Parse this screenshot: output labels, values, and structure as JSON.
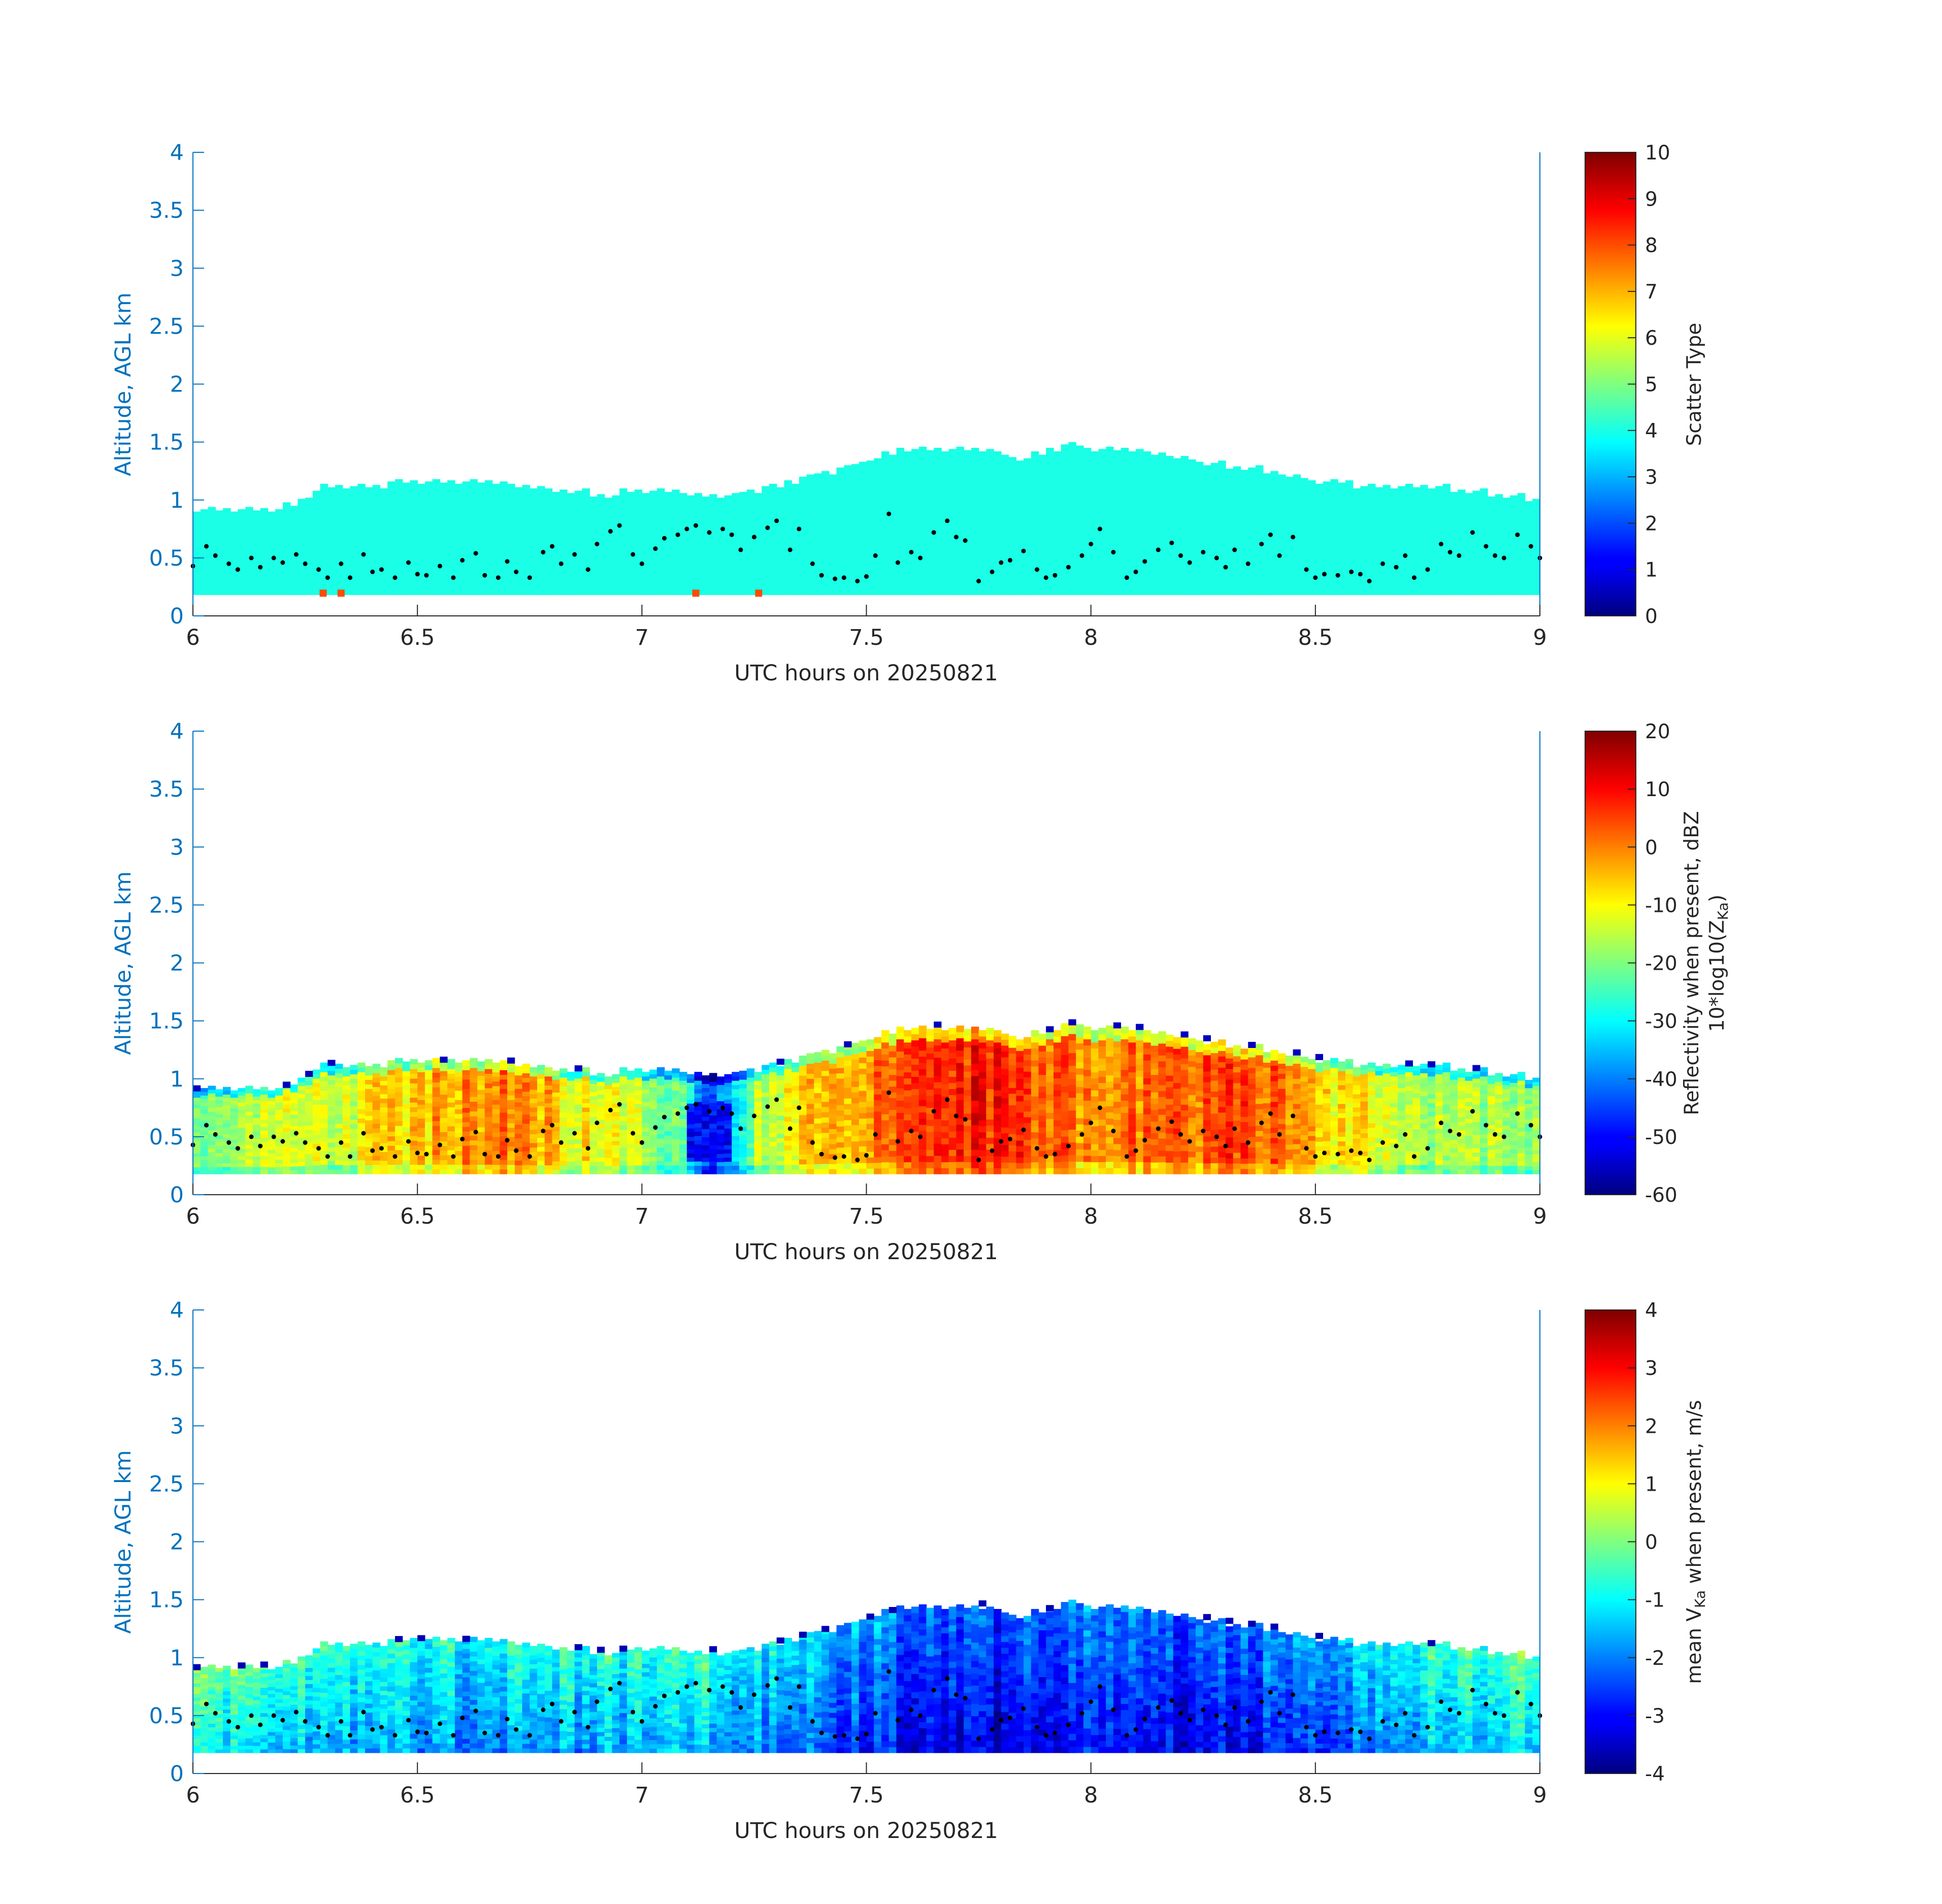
{
  "chart_data": [
    {
      "type": "heatmap",
      "panel": "scatter-type",
      "xlabel": "UTC hours on 20250821",
      "ylabel": "Altitude, AGL km",
      "xlim": [
        6,
        9
      ],
      "ylim": [
        0,
        4
      ],
      "xticks": [
        "6",
        "6.5",
        "7",
        "7.5",
        "8",
        "8.5",
        "9"
      ],
      "yticks": [
        "0",
        "0.5",
        "1",
        "1.5",
        "2",
        "2.5",
        "3",
        "3.5",
        "4"
      ],
      "colorbar": {
        "label": "Scatter Type",
        "label2": "",
        "range": [
          0,
          10
        ],
        "ticks": [
          "0",
          "1",
          "2",
          "3",
          "4",
          "5",
          "6",
          "7",
          "8",
          "9",
          "10"
        ],
        "colormap": "jet"
      },
      "dominant_value": 4,
      "cloud_base_km": 0.18,
      "cloud_top_km": [
        [
          6.0,
          0.9
        ],
        [
          6.2,
          0.93
        ],
        [
          6.3,
          1.12
        ],
        [
          6.5,
          1.15
        ],
        [
          6.7,
          1.14
        ],
        [
          6.9,
          1.05
        ],
        [
          7.0,
          1.07
        ],
        [
          7.2,
          1.05
        ],
        [
          7.3,
          1.13
        ],
        [
          7.45,
          1.28
        ],
        [
          7.6,
          1.45
        ],
        [
          7.75,
          1.45
        ],
        [
          7.85,
          1.35
        ],
        [
          7.95,
          1.47
        ],
        [
          8.1,
          1.43
        ],
        [
          8.3,
          1.3
        ],
        [
          8.4,
          1.25
        ],
        [
          8.5,
          1.17
        ],
        [
          8.6,
          1.13
        ],
        [
          8.8,
          1.1
        ],
        [
          9.0,
          1.0
        ]
      ],
      "special_cells": [
        {
          "x": 6.29,
          "y": 0.2,
          "value": 8
        },
        {
          "x": 6.33,
          "y": 0.2,
          "value": 8
        },
        {
          "x": 7.12,
          "y": 0.2,
          "value": 8
        },
        {
          "x": 7.26,
          "y": 0.2,
          "value": 8
        }
      ]
    },
    {
      "type": "heatmap",
      "panel": "reflectivity",
      "xlabel": "UTC hours on 20250821",
      "ylabel": "Altitude, AGL km",
      "xlim": [
        6,
        9
      ],
      "ylim": [
        0,
        4
      ],
      "xticks": [
        "6",
        "6.5",
        "7",
        "7.5",
        "8",
        "8.5",
        "9"
      ],
      "yticks": [
        "0",
        "0.5",
        "1",
        "1.5",
        "2",
        "2.5",
        "3",
        "3.5",
        "4"
      ],
      "colorbar": {
        "label": "Reflectivity when present, dBZ",
        "label2": "10*log10(Z",
        "label2_sub": "Ka",
        "label2_end": ")",
        "range": [
          -60,
          20
        ],
        "ticks": [
          "-60",
          "-50",
          "-40",
          "-30",
          "-20",
          "-10",
          "0",
          "10",
          "20"
        ],
        "colormap": "jet"
      },
      "intensity_profile": [
        [
          6.0,
          -22
        ],
        [
          6.2,
          -16
        ],
        [
          6.35,
          -12
        ],
        [
          6.5,
          -4
        ],
        [
          6.65,
          -2
        ],
        [
          6.72,
          3
        ],
        [
          6.85,
          -10
        ],
        [
          7.0,
          -14
        ],
        [
          7.1,
          -24
        ],
        [
          7.15,
          -48
        ],
        [
          7.25,
          -18
        ],
        [
          7.4,
          -3
        ],
        [
          7.55,
          2
        ],
        [
          7.75,
          8
        ],
        [
          7.9,
          2
        ],
        [
          8.0,
          0
        ],
        [
          8.15,
          1
        ],
        [
          8.35,
          6
        ],
        [
          8.5,
          -6
        ],
        [
          8.7,
          -14
        ],
        [
          8.9,
          -18
        ],
        [
          9.0,
          -20
        ]
      ],
      "blue_pocket": {
        "x": [
          7.1,
          7.2
        ],
        "y": [
          0.3,
          0.8
        ],
        "value": -50
      }
    },
    {
      "type": "heatmap",
      "panel": "mean-velocity",
      "xlabel": "UTC hours on 20250821",
      "ylabel": "Altitude, AGL km",
      "xlim": [
        6,
        9
      ],
      "ylim": [
        0,
        4
      ],
      "xticks": [
        "6",
        "6.5",
        "7",
        "7.5",
        "8",
        "8.5",
        "9"
      ],
      "yticks": [
        "0",
        "0.5",
        "1",
        "1.5",
        "2",
        "2.5",
        "3",
        "3.5",
        "4"
      ],
      "colorbar": {
        "label_pre": "mean V",
        "label_sub": "Ka",
        "label_post": " when present, m/s",
        "range": [
          -4,
          4
        ],
        "ticks": [
          "-4",
          "-3",
          "-2",
          "-1",
          "0",
          "1",
          "2",
          "3",
          "4"
        ],
        "colormap": "jet"
      },
      "intensity_profile": [
        [
          6.0,
          -0.7
        ],
        [
          6.3,
          -1.0
        ],
        [
          6.6,
          -1.4
        ],
        [
          6.9,
          -1.3
        ],
        [
          7.1,
          -0.9
        ],
        [
          7.3,
          -1.6
        ],
        [
          7.5,
          -2.3
        ],
        [
          7.65,
          -2.6
        ],
        [
          7.8,
          -3.0
        ],
        [
          8.0,
          -2.4
        ],
        [
          8.2,
          -2.8
        ],
        [
          8.35,
          -2.5
        ],
        [
          8.5,
          -1.9
        ],
        [
          8.7,
          -1.3
        ],
        [
          9.0,
          -0.6
        ]
      ]
    }
  ],
  "lcl_points_km": [
    [
      6.0,
      0.43
    ],
    [
      6.03,
      0.6
    ],
    [
      6.05,
      0.52
    ],
    [
      6.08,
      0.45
    ],
    [
      6.1,
      0.4
    ],
    [
      6.13,
      0.5
    ],
    [
      6.15,
      0.42
    ],
    [
      6.18,
      0.5
    ],
    [
      6.2,
      0.46
    ],
    [
      6.23,
      0.53
    ],
    [
      6.25,
      0.45
    ],
    [
      6.28,
      0.4
    ],
    [
      6.3,
      0.33
    ],
    [
      6.33,
      0.45
    ],
    [
      6.35,
      0.33
    ],
    [
      6.38,
      0.53
    ],
    [
      6.4,
      0.38
    ],
    [
      6.42,
      0.4
    ],
    [
      6.45,
      0.33
    ],
    [
      6.48,
      0.46
    ],
    [
      6.5,
      0.36
    ],
    [
      6.52,
      0.35
    ],
    [
      6.55,
      0.43
    ],
    [
      6.58,
      0.33
    ],
    [
      6.6,
      0.48
    ],
    [
      6.63,
      0.54
    ],
    [
      6.65,
      0.35
    ],
    [
      6.68,
      0.33
    ],
    [
      6.7,
      0.47
    ],
    [
      6.72,
      0.38
    ],
    [
      6.75,
      0.33
    ],
    [
      6.78,
      0.55
    ],
    [
      6.8,
      0.6
    ],
    [
      6.82,
      0.45
    ],
    [
      6.85,
      0.53
    ],
    [
      6.88,
      0.4
    ],
    [
      6.9,
      0.62
    ],
    [
      6.93,
      0.73
    ],
    [
      6.95,
      0.78
    ],
    [
      6.98,
      0.53
    ],
    [
      7.0,
      0.45
    ],
    [
      7.03,
      0.58
    ],
    [
      7.05,
      0.67
    ],
    [
      7.08,
      0.7
    ],
    [
      7.1,
      0.75
    ],
    [
      7.12,
      0.78
    ],
    [
      7.15,
      0.72
    ],
    [
      7.18,
      0.75
    ],
    [
      7.2,
      0.7
    ],
    [
      7.22,
      0.57
    ],
    [
      7.25,
      0.68
    ],
    [
      7.28,
      0.76
    ],
    [
      7.3,
      0.82
    ],
    [
      7.33,
      0.57
    ],
    [
      7.35,
      0.75
    ],
    [
      7.38,
      0.45
    ],
    [
      7.4,
      0.35
    ],
    [
      7.43,
      0.32
    ],
    [
      7.45,
      0.33
    ],
    [
      7.48,
      0.3
    ],
    [
      7.5,
      0.34
    ],
    [
      7.52,
      0.52
    ],
    [
      7.55,
      0.88
    ],
    [
      7.57,
      0.46
    ],
    [
      7.6,
      0.55
    ],
    [
      7.62,
      0.5
    ],
    [
      7.65,
      0.72
    ],
    [
      7.68,
      0.82
    ],
    [
      7.7,
      0.68
    ],
    [
      7.72,
      0.65
    ],
    [
      7.75,
      0.3
    ],
    [
      7.78,
      0.38
    ],
    [
      7.8,
      0.46
    ],
    [
      7.82,
      0.48
    ],
    [
      7.85,
      0.56
    ],
    [
      7.88,
      0.4
    ],
    [
      7.9,
      0.33
    ],
    [
      7.92,
      0.35
    ],
    [
      7.95,
      0.42
    ],
    [
      7.98,
      0.52
    ],
    [
      8.0,
      0.62
    ],
    [
      8.02,
      0.75
    ],
    [
      8.05,
      0.55
    ],
    [
      8.08,
      0.33
    ],
    [
      8.1,
      0.38
    ],
    [
      8.12,
      0.47
    ],
    [
      8.15,
      0.57
    ],
    [
      8.18,
      0.63
    ],
    [
      8.2,
      0.52
    ],
    [
      8.22,
      0.46
    ],
    [
      8.25,
      0.55
    ],
    [
      8.28,
      0.5
    ],
    [
      8.3,
      0.42
    ],
    [
      8.32,
      0.57
    ],
    [
      8.35,
      0.45
    ],
    [
      8.38,
      0.62
    ],
    [
      8.4,
      0.7
    ],
    [
      8.42,
      0.52
    ],
    [
      8.45,
      0.68
    ],
    [
      8.48,
      0.4
    ],
    [
      8.5,
      0.33
    ],
    [
      8.52,
      0.36
    ],
    [
      8.55,
      0.35
    ],
    [
      8.58,
      0.38
    ],
    [
      8.6,
      0.36
    ],
    [
      8.62,
      0.3
    ],
    [
      8.65,
      0.45
    ],
    [
      8.68,
      0.42
    ],
    [
      8.7,
      0.52
    ],
    [
      8.72,
      0.33
    ],
    [
      8.75,
      0.4
    ],
    [
      8.78,
      0.62
    ],
    [
      8.8,
      0.55
    ],
    [
      8.82,
      0.52
    ],
    [
      8.85,
      0.72
    ],
    [
      8.88,
      0.6
    ],
    [
      8.9,
      0.52
    ],
    [
      8.92,
      0.5
    ],
    [
      8.95,
      0.7
    ],
    [
      8.98,
      0.6
    ],
    [
      9.0,
      0.5
    ]
  ]
}
